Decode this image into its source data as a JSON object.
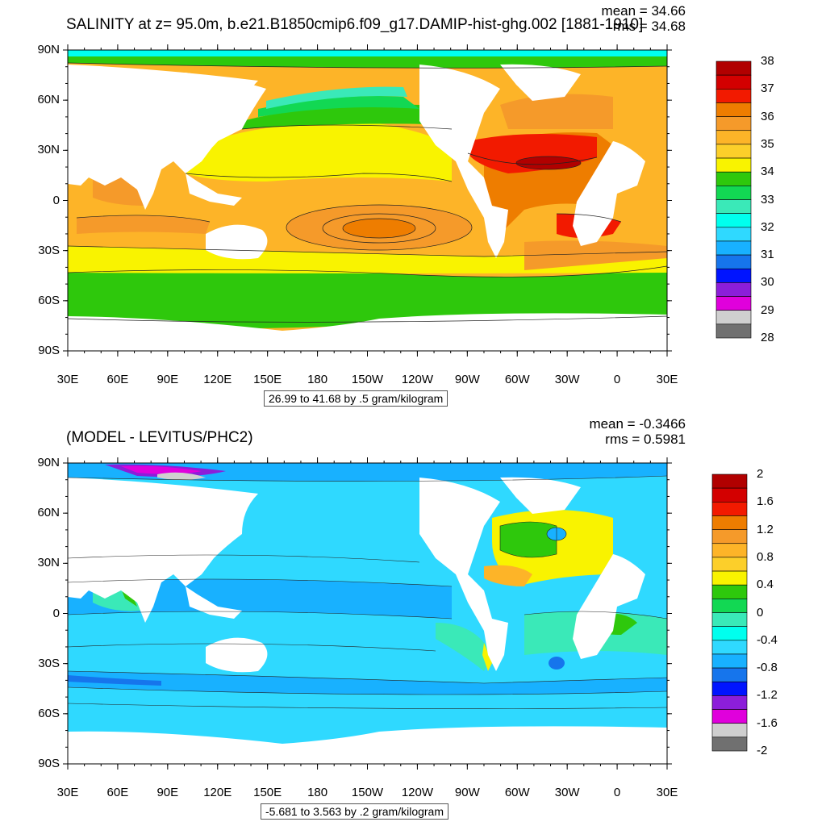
{
  "top": {
    "title": "SALINITY at z=  95.0m, b.e21.B1850cmip6.f09_g17.DAMIP-hist-ghg.002 [1881-1910]",
    "mean": "mean = 34.66",
    "rms": "rms = 34.68",
    "range_note": "26.99 to 41.68 by .5 gram/kilogram",
    "colorbar": {
      "colors": [
        "#b10000",
        "#d30000",
        "#f21a00",
        "#ee7d00",
        "#f59a2a",
        "#fdb428",
        "#fccf2a",
        "#f9f300",
        "#2ec80c",
        "#12d853",
        "#3ae9b8",
        "#00ffee",
        "#2fd9ff",
        "#18b1ff",
        "#1675ec",
        "#0014ff",
        "#8c1ed9",
        "#e000dc",
        "#cfcfcf",
        "#707070"
      ],
      "labels": [
        "38",
        "37",
        "36",
        "35",
        "34",
        "33",
        "32",
        "31",
        "30",
        "29",
        "28"
      ]
    }
  },
  "bottom": {
    "title": "(MODEL - LEVITUS/PHC2)",
    "mean": "mean = -0.3466",
    "rms": "rms = 0.5981",
    "range_note": "-5.681 to 3.563 by .2 gram/kilogram",
    "colorbar": {
      "colors": [
        "#b10000",
        "#d30000",
        "#f21a00",
        "#ee7d00",
        "#f59a2a",
        "#fdb428",
        "#fccf2a",
        "#f9f300",
        "#2ec80c",
        "#12d853",
        "#3ae9b8",
        "#00ffee",
        "#2fd9ff",
        "#18b1ff",
        "#1675ec",
        "#0014ff",
        "#8c1ed9",
        "#e000dc",
        "#cfcfcf",
        "#707070"
      ],
      "labels": [
        "2",
        "1.6",
        "1.2",
        "0.8",
        "0.4",
        "0",
        "-0.4",
        "-0.8",
        "-1.2",
        "-1.6",
        "-2"
      ]
    }
  },
  "axes": {
    "lat_labels": [
      "90N",
      "60N",
      "30N",
      "0",
      "30S",
      "60S",
      "90S"
    ],
    "lon_labels": [
      "30E",
      "60E",
      "90E",
      "120E",
      "150E",
      "180",
      "150W",
      "120W",
      "90W",
      "60W",
      "30W",
      "0",
      "30E"
    ]
  },
  "map_colors": {
    "land": "#ffffff",
    "top_background": "#fdb428",
    "bottom_background": "#2fd9ff"
  }
}
